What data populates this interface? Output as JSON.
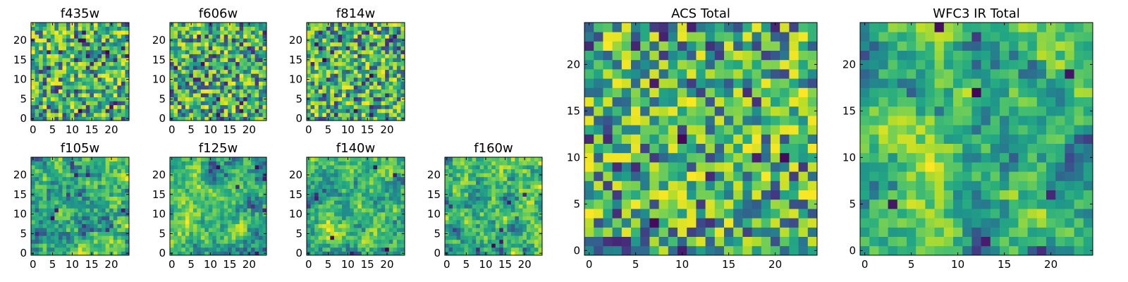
{
  "chart_data": [
    {
      "type": "heatmap",
      "name": "f435w",
      "title": "f435w",
      "xlim": [
        -0.5,
        24.5
      ],
      "ylim": [
        -0.5,
        24.5
      ],
      "xticks": [
        0,
        5,
        10,
        15,
        20
      ],
      "yticks": [
        0,
        5,
        10,
        15,
        20
      ],
      "xtick_labels": [
        "0",
        "5",
        "10",
        "15",
        "20"
      ],
      "ytick_labels": [
        "0",
        "5",
        "10",
        "15",
        "20"
      ],
      "colormap": "viridis",
      "texture": "noise",
      "size": [
        25,
        25
      ],
      "seed": 11
    },
    {
      "type": "heatmap",
      "name": "f606w",
      "title": "f606w",
      "xlim": [
        -0.5,
        24.5
      ],
      "ylim": [
        -0.5,
        24.5
      ],
      "xticks": [
        0,
        5,
        10,
        15,
        20
      ],
      "yticks": [
        0,
        5,
        10,
        15,
        20
      ],
      "xtick_labels": [
        "0",
        "5",
        "10",
        "15",
        "20"
      ],
      "ytick_labels": [
        "0",
        "5",
        "10",
        "15",
        "20"
      ],
      "colormap": "viridis",
      "texture": "noise",
      "size": [
        25,
        25
      ],
      "seed": 23
    },
    {
      "type": "heatmap",
      "name": "f814w",
      "title": "f814w",
      "xlim": [
        -0.5,
        24.5
      ],
      "ylim": [
        -0.5,
        24.5
      ],
      "xticks": [
        0,
        5,
        10,
        15,
        20
      ],
      "yticks": [
        0,
        5,
        10,
        15,
        20
      ],
      "xtick_labels": [
        "0",
        "5",
        "10",
        "15",
        "20"
      ],
      "ytick_labels": [
        "0",
        "5",
        "10",
        "15",
        "20"
      ],
      "colormap": "viridis",
      "texture": "noise",
      "size": [
        25,
        25
      ],
      "seed": 37
    },
    {
      "type": "heatmap",
      "name": "f105w",
      "title": "f105w",
      "xlim": [
        -0.5,
        24.5
      ],
      "ylim": [
        -0.5,
        24.5
      ],
      "xticks": [
        0,
        5,
        10,
        15,
        20
      ],
      "yticks": [
        0,
        5,
        10,
        15,
        20
      ],
      "xtick_labels": [
        "0",
        "5",
        "10",
        "15",
        "20"
      ],
      "ytick_labels": [
        "0",
        "5",
        "10",
        "15",
        "20"
      ],
      "colormap": "viridis",
      "texture": "smooth",
      "size": [
        25,
        25
      ],
      "seed": 41
    },
    {
      "type": "heatmap",
      "name": "f125w",
      "title": "f125w",
      "xlim": [
        -0.5,
        24.5
      ],
      "ylim": [
        -0.5,
        24.5
      ],
      "xticks": [
        0,
        5,
        10,
        15,
        20
      ],
      "yticks": [
        0,
        5,
        10,
        15,
        20
      ],
      "xtick_labels": [
        "0",
        "5",
        "10",
        "15",
        "20"
      ],
      "ytick_labels": [
        "0",
        "5",
        "10",
        "15",
        "20"
      ],
      "colormap": "viridis",
      "texture": "smooth",
      "size": [
        25,
        25
      ],
      "seed": 53
    },
    {
      "type": "heatmap",
      "name": "f140w",
      "title": "f140w",
      "xlim": [
        -0.5,
        24.5
      ],
      "ylim": [
        -0.5,
        24.5
      ],
      "xticks": [
        0,
        5,
        10,
        15,
        20
      ],
      "yticks": [
        0,
        5,
        10,
        15,
        20
      ],
      "xtick_labels": [
        "0",
        "5",
        "10",
        "15",
        "20"
      ],
      "ytick_labels": [
        "0",
        "5",
        "10",
        "15",
        "20"
      ],
      "colormap": "viridis",
      "texture": "smooth",
      "size": [
        25,
        25
      ],
      "seed": 67
    },
    {
      "type": "heatmap",
      "name": "f160w",
      "title": "f160w",
      "xlim": [
        -0.5,
        24.5
      ],
      "ylim": [
        -0.5,
        24.5
      ],
      "xticks": [
        0,
        5,
        10,
        15,
        20
      ],
      "yticks": [
        0,
        5,
        10,
        15,
        20
      ],
      "xtick_labels": [
        "0",
        "5",
        "10",
        "15",
        "20"
      ],
      "ytick_labels": [
        "0",
        "5",
        "10",
        "15",
        "20"
      ],
      "colormap": "viridis",
      "texture": "smooth",
      "size": [
        25,
        25
      ],
      "seed": 79
    },
    {
      "type": "heatmap",
      "name": "acs-total",
      "title": "ACS Total",
      "xlim": [
        -0.5,
        24.5
      ],
      "ylim": [
        -0.5,
        24.5
      ],
      "xticks": [
        0,
        5,
        10,
        15,
        20
      ],
      "yticks": [
        0,
        5,
        10,
        15,
        20
      ],
      "xtick_labels": [
        "0",
        "5",
        "10",
        "15",
        "20"
      ],
      "ytick_labels": [
        "0",
        "5",
        "10",
        "15",
        "20"
      ],
      "colormap": "viridis",
      "texture": "noise",
      "size": [
        25,
        25
      ],
      "seed": 97
    },
    {
      "type": "heatmap",
      "name": "wfc3-ir-total",
      "title": "WFC3 IR Total",
      "xlim": [
        -0.5,
        24.5
      ],
      "ylim": [
        -0.5,
        24.5
      ],
      "xticks": [
        0,
        5,
        10,
        15,
        20
      ],
      "yticks": [
        0,
        5,
        10,
        15,
        20
      ],
      "xtick_labels": [
        "0",
        "5",
        "10",
        "15",
        "20"
      ],
      "ytick_labels": [
        "0",
        "5",
        "10",
        "15",
        "20"
      ],
      "colormap": "viridis",
      "texture": "smooth",
      "size": [
        25,
        25
      ],
      "seed": 101
    }
  ]
}
